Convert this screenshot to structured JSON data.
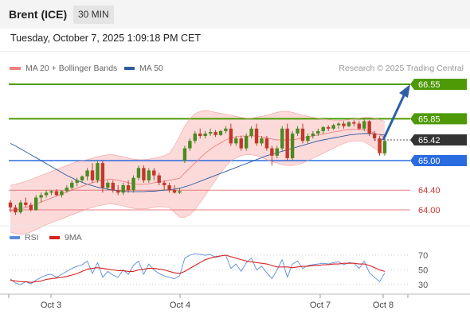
{
  "header": {
    "instrument": "Brent (ICE)",
    "timeframe": "30 MIN"
  },
  "timestamp": "Tuesday, October 7, 2025 1:09:18 PM CET",
  "legend": {
    "ma20": {
      "label": "MA 20 + Bollinger Bands",
      "color": "#f08080"
    },
    "ma50": {
      "label": "MA 50",
      "color": "#2e5aa0"
    }
  },
  "copyright": "Research © 2025 Trading Central",
  "rsi_legend": {
    "rsi": {
      "label": "RSI",
      "color": "#5b8cdc"
    },
    "ma9": {
      "label": "9MA",
      "color": "#d92020"
    }
  },
  "levels": [
    {
      "value": "66.55",
      "kind": "resistance",
      "color": "#4e9a06"
    },
    {
      "value": "65.85",
      "kind": "resistance",
      "color": "#4e9a06"
    },
    {
      "value": "65.42",
      "kind": "current",
      "color": "#333333"
    },
    {
      "value": "65.00",
      "kind": "pivot",
      "color": "#2b6be0"
    },
    {
      "value": "64.40",
      "kind": "support",
      "color": "#e06060"
    },
    {
      "value": "64.00",
      "kind": "support",
      "color": "#e06060"
    }
  ],
  "rsi_axis": [
    "70",
    "50",
    "30"
  ],
  "x_axis": [
    "Oct 3",
    "Oct 4",
    "Oct 7",
    "Oct 8"
  ],
  "colors": {
    "bull": "#4b8a1f",
    "bear": "#c0392b",
    "band": "#fbd3d3",
    "arrow": "#2f5fa6"
  },
  "chart_data": {
    "type": "candlestick",
    "price_axis": [
      66.55,
      65.85,
      65.42,
      65.0,
      64.4,
      64.0
    ],
    "price_range": [
      63.8,
      66.9
    ],
    "rsi_range": [
      20,
      80
    ],
    "candles": [
      [
        64.15,
        64.2,
        63.95,
        64.05
      ],
      [
        64.05,
        64.1,
        63.9,
        63.95
      ],
      [
        63.95,
        64.2,
        63.92,
        64.15
      ],
      [
        64.15,
        64.25,
        64.05,
        64.1
      ],
      [
        64.1,
        64.15,
        63.97,
        64.0
      ],
      [
        64.0,
        64.3,
        63.98,
        64.25
      ],
      [
        64.25,
        64.35,
        64.15,
        64.3
      ],
      [
        64.3,
        64.4,
        64.25,
        64.35
      ],
      [
        64.35,
        64.4,
        64.3,
        64.38
      ],
      [
        64.38,
        64.42,
        64.28,
        64.3
      ],
      [
        64.3,
        64.4,
        64.25,
        64.38
      ],
      [
        64.38,
        64.5,
        64.35,
        64.45
      ],
      [
        64.45,
        64.6,
        64.4,
        64.55
      ],
      [
        64.55,
        64.65,
        64.48,
        64.6
      ],
      [
        64.6,
        64.7,
        64.55,
        64.68
      ],
      [
        64.68,
        64.85,
        64.6,
        64.8
      ],
      [
        64.8,
        64.95,
        64.55,
        64.6
      ],
      [
        64.6,
        65.0,
        64.55,
        64.95
      ],
      [
        64.95,
        65.0,
        64.35,
        64.45
      ],
      [
        64.45,
        64.6,
        64.4,
        64.55
      ],
      [
        64.55,
        64.6,
        64.35,
        64.4
      ],
      [
        64.4,
        64.5,
        64.3,
        64.35
      ],
      [
        64.35,
        64.55,
        64.3,
        64.5
      ],
      [
        64.5,
        64.6,
        64.35,
        64.4
      ],
      [
        64.4,
        64.7,
        64.35,
        64.65
      ],
      [
        64.65,
        64.9,
        64.6,
        64.85
      ],
      [
        64.85,
        64.9,
        64.55,
        64.6
      ],
      [
        64.6,
        64.85,
        64.55,
        64.8
      ],
      [
        64.8,
        64.85,
        64.6,
        64.7
      ],
      [
        64.7,
        64.75,
        64.5,
        64.55
      ],
      [
        64.55,
        64.6,
        64.4,
        64.5
      ],
      [
        64.5,
        64.55,
        64.35,
        64.4
      ],
      [
        64.4,
        64.5,
        64.33,
        64.35
      ],
      [
        64.35,
        64.45,
        64.32,
        64.38
      ],
      [
        65.0,
        65.3,
        64.95,
        65.25
      ],
      [
        65.25,
        65.45,
        65.2,
        65.4
      ],
      [
        65.4,
        65.6,
        65.35,
        65.55
      ],
      [
        65.55,
        65.65,
        65.45,
        65.5
      ],
      [
        65.5,
        65.6,
        65.45,
        65.55
      ],
      [
        65.55,
        65.65,
        65.5,
        65.58
      ],
      [
        65.58,
        65.62,
        65.48,
        65.52
      ],
      [
        65.52,
        65.62,
        65.5,
        65.6
      ],
      [
        65.6,
        65.7,
        65.55,
        65.65
      ],
      [
        65.65,
        65.75,
        65.3,
        65.35
      ],
      [
        65.35,
        65.5,
        65.3,
        65.45
      ],
      [
        65.45,
        65.5,
        65.2,
        65.25
      ],
      [
        65.25,
        65.55,
        65.2,
        65.5
      ],
      [
        65.5,
        65.7,
        65.45,
        65.65
      ],
      [
        65.65,
        65.75,
        65.3,
        65.35
      ],
      [
        65.35,
        65.5,
        65.3,
        65.45
      ],
      [
        65.45,
        65.5,
        65.2,
        65.25
      ],
      [
        65.25,
        65.3,
        64.9,
        65.1
      ],
      [
        65.1,
        65.3,
        65.05,
        65.25
      ],
      [
        65.25,
        65.7,
        65.2,
        65.65
      ],
      [
        65.65,
        65.75,
        65.0,
        65.05
      ],
      [
        65.05,
        65.6,
        65.0,
        65.55
      ],
      [
        65.55,
        65.7,
        65.5,
        65.65
      ],
      [
        65.65,
        65.75,
        65.35,
        65.4
      ],
      [
        65.4,
        65.55,
        65.35,
        65.5
      ],
      [
        65.5,
        65.6,
        65.45,
        65.55
      ],
      [
        65.55,
        65.65,
        65.5,
        65.6
      ],
      [
        65.6,
        65.7,
        65.55,
        65.68
      ],
      [
        65.68,
        65.72,
        65.6,
        65.65
      ],
      [
        65.65,
        65.75,
        65.62,
        65.72
      ],
      [
        65.72,
        65.78,
        65.65,
        65.75
      ],
      [
        65.75,
        65.8,
        65.65,
        65.7
      ],
      [
        65.7,
        65.8,
        65.68,
        65.78
      ],
      [
        65.78,
        65.82,
        65.7,
        65.75
      ],
      [
        65.75,
        65.8,
        65.62,
        65.65
      ],
      [
        65.65,
        65.85,
        65.6,
        65.8
      ],
      [
        65.8,
        65.82,
        65.5,
        65.55
      ],
      [
        65.55,
        65.6,
        65.4,
        65.45
      ],
      [
        65.45,
        65.5,
        65.1,
        65.15
      ],
      [
        65.15,
        65.45,
        65.1,
        65.4
      ]
    ],
    "ma20": [
      63.98,
      64.0,
      64.02,
      64.05,
      64.08,
      64.12,
      64.16,
      64.2,
      64.24,
      64.28,
      64.32,
      64.36,
      64.4,
      64.44,
      64.48,
      64.52,
      64.55,
      64.58,
      64.6,
      64.62,
      64.62,
      64.6,
      64.58,
      64.55,
      64.53,
      64.52,
      64.52,
      64.53,
      64.55,
      64.57,
      64.58,
      64.6,
      64.62,
      64.64,
      64.75,
      64.85,
      64.95,
      65.05,
      65.15,
      65.23,
      65.3,
      65.36,
      65.42,
      65.46,
      65.48,
      65.5,
      65.5,
      65.5,
      65.5,
      65.48,
      65.46,
      65.44,
      65.42,
      65.42,
      65.42,
      65.42,
      65.44,
      65.46,
      65.48,
      65.5,
      65.52,
      65.54,
      65.56,
      65.58,
      65.6,
      65.62,
      65.63,
      65.64,
      65.64,
      65.63,
      65.6,
      65.56,
      65.52,
      65.48
    ],
    "ma50": [
      65.35,
      65.3,
      65.24,
      65.18,
      65.12,
      65.06,
      65.0,
      64.94,
      64.88,
      64.82,
      64.76,
      64.7,
      64.65,
      64.6,
      64.56,
      64.52,
      64.49,
      64.46,
      64.44,
      64.42,
      64.4,
      64.39,
      64.38,
      64.37,
      64.37,
      64.37,
      64.37,
      64.38,
      64.38,
      64.39,
      64.4,
      64.41,
      64.42,
      64.44,
      64.47,
      64.5,
      64.54,
      64.58,
      64.62,
      64.66,
      64.7,
      64.74,
      64.78,
      64.82,
      64.86,
      64.9,
      64.94,
      64.98,
      65.02,
      65.06,
      65.1,
      65.13,
      65.16,
      65.19,
      65.22,
      65.25,
      65.28,
      65.31,
      65.34,
      65.37,
      65.4,
      65.42,
      65.44,
      65.46,
      65.48,
      65.5,
      65.52,
      65.53,
      65.54,
      65.55,
      65.55,
      65.54,
      65.53,
      65.52
    ],
    "bb_upper": [
      64.5,
      64.52,
      64.55,
      64.58,
      64.62,
      64.66,
      64.7,
      64.74,
      64.78,
      64.82,
      64.86,
      64.9,
      64.94,
      64.98,
      65.0,
      65.02,
      65.05,
      65.08,
      65.1,
      65.12,
      65.12,
      65.1,
      65.08,
      65.05,
      65.03,
      65.02,
      65.02,
      65.03,
      65.05,
      65.07,
      65.1,
      65.15,
      65.3,
      65.5,
      65.7,
      65.85,
      65.95,
      66.0,
      66.02,
      66.0,
      65.98,
      65.96,
      65.94,
      65.92,
      65.9,
      65.88,
      65.86,
      65.86,
      65.88,
      65.9,
      65.92,
      65.95,
      65.98,
      66.0,
      66.0,
      65.98,
      65.95,
      65.92,
      65.9,
      65.88,
      65.86,
      65.84,
      65.83,
      65.82,
      65.82,
      65.82,
      65.83,
      65.84,
      65.86,
      65.88,
      65.88,
      65.86,
      65.83,
      65.8
    ],
    "bb_lower": [
      63.55,
      63.52,
      63.5,
      63.52,
      63.55,
      63.6,
      63.65,
      63.7,
      63.74,
      63.78,
      63.82,
      63.86,
      63.9,
      63.94,
      63.98,
      64.02,
      64.05,
      64.08,
      64.1,
      64.12,
      64.12,
      64.1,
      64.08,
      64.05,
      64.03,
      64.02,
      64.02,
      64.03,
      64.05,
      64.07,
      64.06,
      64.05,
      63.95,
      63.85,
      63.85,
      63.9,
      64.0,
      64.15,
      64.3,
      64.45,
      64.6,
      64.75,
      64.88,
      65.0,
      65.05,
      65.1,
      65.12,
      65.12,
      65.1,
      65.06,
      65.02,
      64.98,
      64.95,
      64.92,
      64.9,
      64.9,
      64.92,
      64.95,
      65.0,
      65.05,
      65.1,
      65.15,
      65.2,
      65.25,
      65.3,
      65.35,
      65.38,
      65.4,
      65.4,
      65.38,
      65.32,
      65.25,
      65.18,
      65.12
    ],
    "rsi": [
      38,
      32,
      30,
      34,
      31,
      36,
      40,
      43,
      44,
      40,
      44,
      48,
      52,
      55,
      57,
      62,
      45,
      60,
      40,
      48,
      43,
      40,
      50,
      44,
      56,
      62,
      44,
      58,
      50,
      45,
      42,
      40,
      38,
      42,
      66,
      70,
      72,
      71,
      70,
      71,
      67,
      69,
      70,
      52,
      58,
      48,
      60,
      66,
      50,
      55,
      46,
      38,
      50,
      64,
      40,
      58,
      62,
      52,
      56,
      57,
      58,
      59,
      58,
      60,
      61,
      57,
      60,
      59,
      52,
      62,
      46,
      40,
      34,
      46
    ],
    "rsi_ma9": [
      36,
      35,
      34,
      34,
      33,
      34,
      35,
      37,
      38,
      39,
      40,
      41,
      43,
      45,
      48,
      51,
      52,
      53,
      52,
      51,
      50,
      49,
      49,
      48,
      48,
      50,
      51,
      52,
      52,
      51,
      50,
      48,
      46,
      45,
      48,
      52,
      56,
      60,
      64,
      66,
      68,
      69,
      70,
      68,
      66,
      64,
      62,
      61,
      60,
      59,
      58,
      56,
      54,
      54,
      54,
      53,
      54,
      55,
      55,
      56,
      56,
      57,
      57,
      58,
      58,
      59,
      59,
      59,
      58,
      58,
      56,
      53,
      50,
      48
    ]
  }
}
